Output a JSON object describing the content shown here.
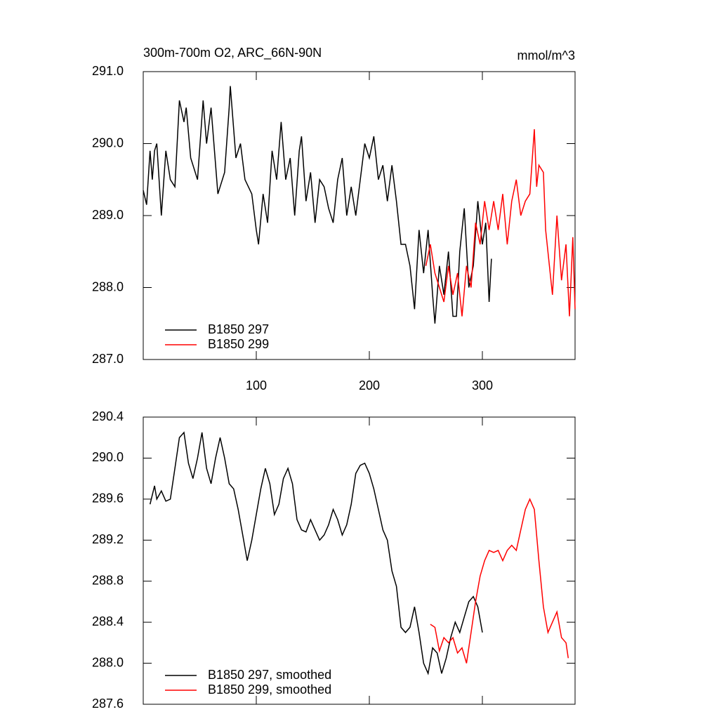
{
  "chart_data": [
    {
      "type": "line",
      "title": "300m-700m O2, ARC_66N-90N",
      "units": "mmol/m^3",
      "xlim": [
        0,
        382
      ],
      "xticks": [
        100,
        200,
        300
      ],
      "ylim": [
        287,
        291
      ],
      "yticks": [
        {
          "value": 287,
          "label": "287.0"
        },
        {
          "value": 288,
          "label": "288.0"
        },
        {
          "value": 289,
          "label": "289.0"
        },
        {
          "value": 290,
          "label": "290.0"
        },
        {
          "value": 291,
          "label": "291.0"
        }
      ],
      "series": [
        {
          "name": "B1850 297",
          "color": "#000000",
          "x": [
            0,
            3,
            6,
            8,
            10,
            12,
            16,
            20,
            24,
            28,
            32,
            36,
            38,
            42,
            48,
            53,
            56,
            60,
            66,
            72,
            76,
            77,
            82,
            86,
            90,
            96,
            100,
            102,
            106,
            110,
            114,
            118,
            122,
            126,
            130,
            134,
            138,
            140,
            144,
            148,
            152,
            156,
            160,
            164,
            168,
            172,
            176,
            180,
            184,
            188,
            192,
            196,
            200,
            204,
            208,
            212,
            216,
            220,
            224,
            228,
            232,
            236,
            240,
            244,
            248,
            252,
            256,
            258,
            262,
            266,
            270,
            274,
            277,
            280,
            284,
            288,
            292,
            296,
            300,
            303,
            306,
            308
          ],
          "values": [
            289.35,
            289.15,
            289.9,
            289.5,
            289.9,
            290.0,
            289.0,
            289.9,
            289.5,
            289.4,
            290.6,
            290.3,
            290.5,
            289.8,
            289.5,
            290.6,
            290.0,
            290.5,
            289.3,
            289.6,
            290.5,
            290.8,
            289.8,
            290.0,
            289.5,
            289.3,
            288.8,
            288.6,
            289.3,
            288.9,
            289.9,
            289.5,
            290.3,
            289.5,
            289.8,
            289.0,
            289.9,
            290.1,
            289.2,
            289.6,
            288.9,
            289.5,
            289.4,
            289.1,
            288.9,
            289.5,
            289.8,
            289.0,
            289.4,
            289.0,
            289.5,
            290.0,
            289.8,
            290.1,
            289.5,
            289.7,
            289.2,
            289.7,
            289.2,
            288.6,
            288.6,
            288.3,
            287.7,
            288.8,
            288.2,
            288.8,
            287.9,
            287.5,
            288.3,
            287.9,
            288.5,
            287.6,
            287.6,
            288.5,
            289.1,
            288.0,
            288.3,
            289.2,
            288.6,
            288.9,
            287.8,
            288.4
          ]
        },
        {
          "name": "B1850 299",
          "color": "#ff0000",
          "x": [
            250,
            254,
            258,
            262,
            266,
            270,
            274,
            278,
            282,
            286,
            290,
            294,
            298,
            302,
            306,
            310,
            314,
            318,
            322,
            326,
            330,
            334,
            338,
            342,
            346,
            348,
            350,
            354,
            356,
            362,
            366,
            370,
            374,
            377,
            380,
            382
          ],
          "values": [
            288.3,
            288.6,
            288.2,
            288.0,
            287.8,
            288.3,
            287.9,
            288.2,
            287.6,
            288.3,
            288.0,
            288.9,
            288.6,
            289.2,
            288.8,
            289.2,
            288.8,
            289.3,
            288.6,
            289.2,
            289.5,
            289.0,
            289.2,
            289.3,
            290.2,
            289.4,
            289.7,
            289.6,
            288.8,
            287.9,
            289.0,
            288.1,
            288.6,
            287.6,
            288.7,
            287.7
          ]
        }
      ]
    },
    {
      "type": "line",
      "xlim": [
        0,
        382
      ],
      "xticks": [
        100,
        200,
        300
      ],
      "ylim": [
        287.6,
        290.4
      ],
      "yticks": [
        {
          "value": 287.6,
          "label": "287.6"
        },
        {
          "value": 288,
          "label": "288.0"
        },
        {
          "value": 288.4,
          "label": "288.4"
        },
        {
          "value": 288.8,
          "label": "288.8"
        },
        {
          "value": 289.2,
          "label": "289.2"
        },
        {
          "value": 289.6,
          "label": "289.6"
        },
        {
          "value": 290,
          "label": "290.0"
        },
        {
          "value": 290.4,
          "label": "290.4"
        }
      ],
      "series": [
        {
          "name": "B1850 297, smoothed",
          "color": "#000000",
          "x": [
            6,
            10,
            12,
            16,
            20,
            24,
            28,
            32,
            36,
            40,
            44,
            48,
            52,
            56,
            60,
            64,
            68,
            72,
            76,
            80,
            84,
            88,
            92,
            96,
            100,
            104,
            108,
            112,
            116,
            120,
            124,
            128,
            132,
            136,
            140,
            144,
            148,
            152,
            156,
            160,
            164,
            168,
            172,
            176,
            180,
            184,
            188,
            192,
            196,
            200,
            204,
            208,
            212,
            216,
            220,
            224,
            228,
            232,
            236,
            240,
            244,
            248,
            252,
            256,
            260,
            264,
            268,
            272,
            276,
            280,
            284,
            288,
            292,
            296,
            300
          ],
          "values": [
            289.55,
            289.73,
            289.6,
            289.68,
            289.58,
            289.6,
            289.9,
            290.2,
            290.25,
            289.95,
            289.8,
            290.0,
            290.25,
            289.9,
            289.75,
            290.0,
            290.2,
            290.0,
            289.75,
            289.7,
            289.5,
            289.25,
            289.0,
            289.2,
            289.45,
            289.7,
            289.9,
            289.75,
            289.45,
            289.55,
            289.8,
            289.9,
            289.75,
            289.4,
            289.3,
            289.28,
            289.4,
            289.3,
            289.2,
            289.25,
            289.35,
            289.5,
            289.4,
            289.25,
            289.35,
            289.55,
            289.85,
            289.93,
            289.95,
            289.85,
            289.7,
            289.5,
            289.3,
            289.2,
            288.9,
            288.75,
            288.35,
            288.3,
            288.35,
            288.55,
            288.3,
            288.0,
            287.9,
            288.15,
            288.1,
            287.9,
            288.05,
            288.25,
            288.4,
            288.3,
            288.45,
            288.6,
            288.65,
            288.55,
            288.3
          ]
        },
        {
          "name": "B1850 299, smoothed",
          "color": "#ff0000",
          "x": [
            254,
            258,
            262,
            266,
            270,
            274,
            278,
            282,
            286,
            290,
            294,
            298,
            302,
            306,
            310,
            314,
            318,
            322,
            326,
            330,
            334,
            338,
            342,
            346,
            350,
            354,
            358,
            362,
            366,
            370,
            374,
            376
          ],
          "values": [
            288.38,
            288.35,
            288.12,
            288.25,
            288.2,
            288.25,
            288.1,
            288.15,
            288.0,
            288.3,
            288.6,
            288.85,
            289.0,
            289.1,
            289.08,
            289.1,
            289.0,
            289.1,
            289.15,
            289.1,
            289.3,
            289.5,
            289.6,
            289.5,
            289.0,
            288.55,
            288.3,
            288.4,
            288.5,
            288.25,
            288.2,
            288.05
          ]
        }
      ]
    }
  ]
}
